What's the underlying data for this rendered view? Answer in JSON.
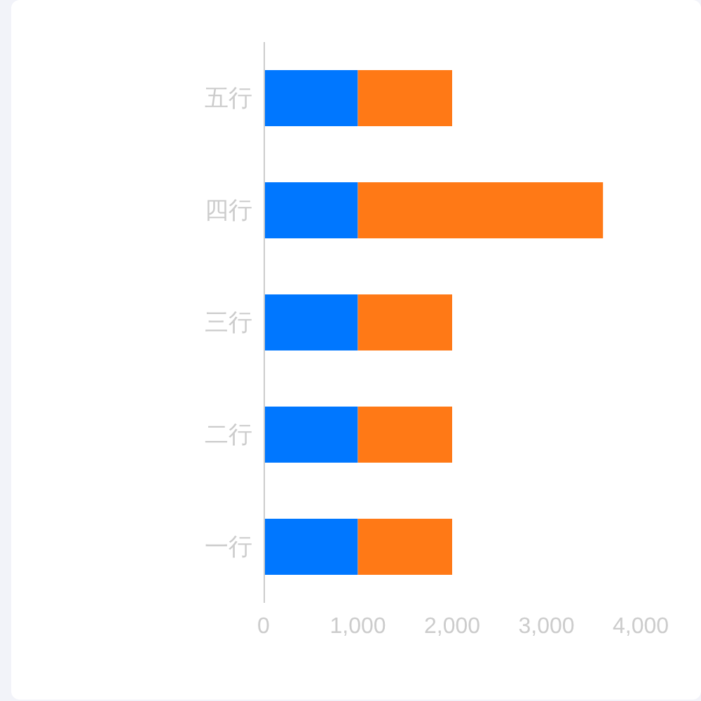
{
  "chart_data": {
    "type": "bar",
    "orientation": "horizontal",
    "stacked": true,
    "categories": [
      "五行",
      "四行",
      "三行",
      "二行",
      "一行"
    ],
    "series": [
      {
        "color": "#0077ff",
        "values": [
          1000,
          1000,
          1000,
          1000,
          1000
        ]
      },
      {
        "color": "#ff7916",
        "values": [
          1000,
          2600,
          1000,
          1000,
          1000
        ]
      }
    ],
    "xlim": [
      0,
      4000
    ],
    "xticks": [
      0,
      {
        "value": 1000,
        "label": "1,000"
      },
      {
        "value": 2000,
        "label": "2,000"
      },
      {
        "value": 3000,
        "label": "3,000"
      },
      {
        "value": 4000,
        "label": "4,000"
      }
    ]
  }
}
